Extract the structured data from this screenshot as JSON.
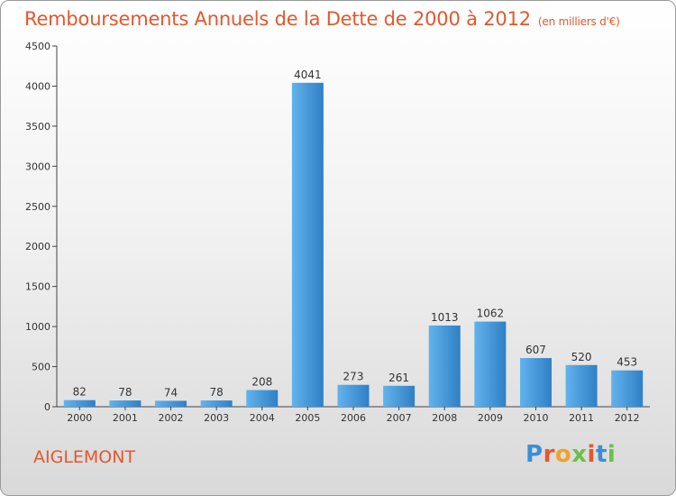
{
  "chart_data": {
    "type": "bar",
    "title": "Remboursements Annuels de la Dette de 2000 à 2012",
    "subtitle": "(en milliers d'€)",
    "categories": [
      "2000",
      "2001",
      "2002",
      "2003",
      "2004",
      "2005",
      "2006",
      "2007",
      "2008",
      "2009",
      "2010",
      "2011",
      "2012"
    ],
    "values": [
      82,
      78,
      74,
      78,
      208,
      4041,
      273,
      261,
      1013,
      1062,
      607,
      520,
      453
    ],
    "ylim": [
      0,
      4500
    ],
    "yticks": [
      0,
      500,
      1000,
      1500,
      2000,
      2500,
      3000,
      3500,
      4000,
      4500
    ],
    "grid": false,
    "legend": "none",
    "bar_color_top": "#62b3ec",
    "bar_color_bottom": "#2f7fc6"
  },
  "commune": "AIGLEMONT",
  "logo": {
    "letters": [
      "P",
      "r",
      "o",
      "x",
      "i",
      "t",
      "i"
    ],
    "colors": [
      "#3a8fd6",
      "#e4572e",
      "#f0a22b",
      "#6cc04a",
      "#e4572e",
      "#3a8fd6",
      "#6cc04a"
    ]
  }
}
